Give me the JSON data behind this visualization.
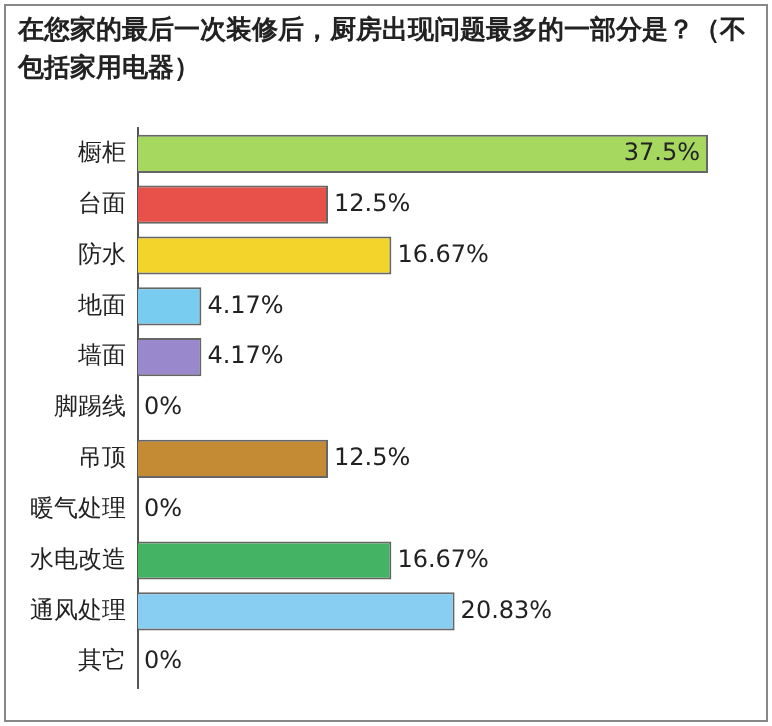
{
  "chart_data": {
    "type": "bar",
    "orientation": "horizontal",
    "title": "在您家的最后一次装修后，厨房出现问题最多的一部分是？（不包括家用电器）",
    "categories": [
      "橱柜",
      "台面",
      "防水",
      "地面",
      "墙面",
      "脚踢线",
      "吊顶",
      "暖气处理",
      "水电改造",
      "通风处理",
      "其它"
    ],
    "values": [
      37.5,
      12.5,
      16.67,
      4.17,
      4.17,
      0,
      12.5,
      0,
      16.67,
      20.83,
      0
    ],
    "colors": [
      "#a6d860",
      "#e8504a",
      "#f2d42a",
      "#78ccf0",
      "#9a88cc",
      "#999999",
      "#c48a34",
      "#999999",
      "#44b464",
      "#88cef2",
      "#999999"
    ],
    "value_labels": [
      "37.5%",
      "12.5%",
      "16.67%",
      "4.17%",
      "4.17%",
      "0%",
      "12.5%",
      "0%",
      "16.67%",
      "20.83%",
      "0%"
    ],
    "tick_labels": "y",
    "legend": false
  }
}
